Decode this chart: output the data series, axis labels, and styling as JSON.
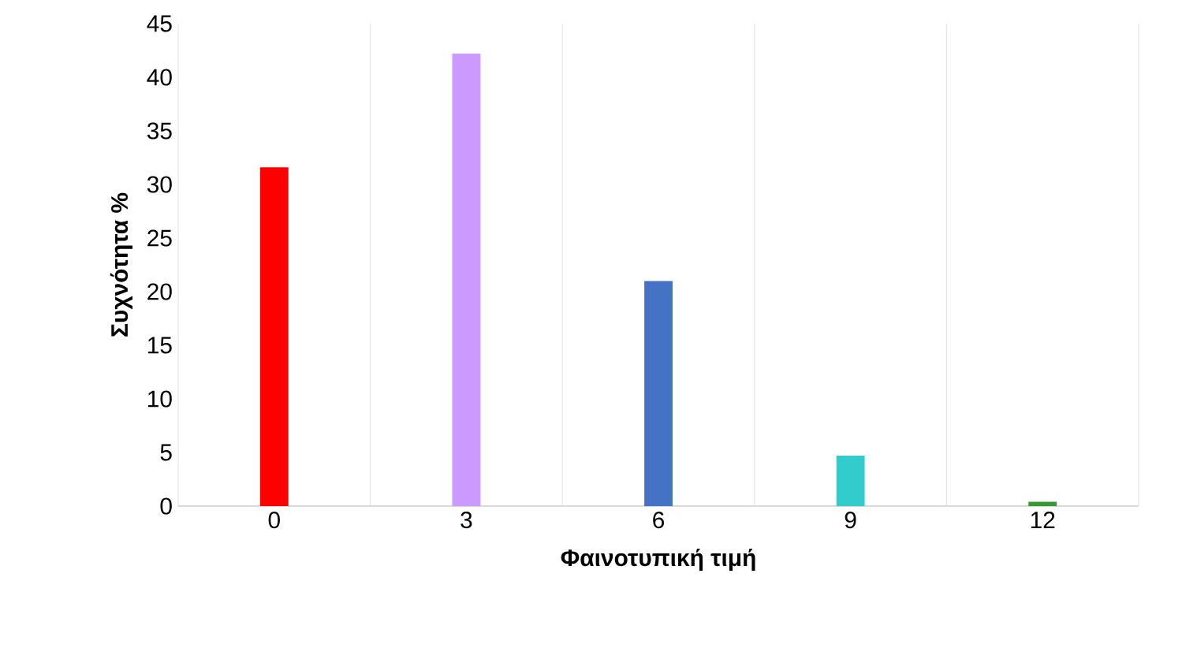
{
  "chart_data": {
    "type": "bar",
    "xlabel": "Φαινοτυπική τιμή",
    "ylabel": "Συχνότητα %",
    "categories": [
      "0",
      "3",
      "6",
      "9",
      "12"
    ],
    "values": [
      31.6,
      42.2,
      21.0,
      4.7,
      0.4
    ],
    "colors": [
      "#ff0000",
      "#cc99ff",
      "#4472c4",
      "#33cccc",
      "#339933"
    ],
    "ylim": [
      0,
      45
    ],
    "yticks": [
      0,
      5,
      10,
      15,
      20,
      25,
      30,
      35,
      40,
      45
    ],
    "grid": "x"
  }
}
